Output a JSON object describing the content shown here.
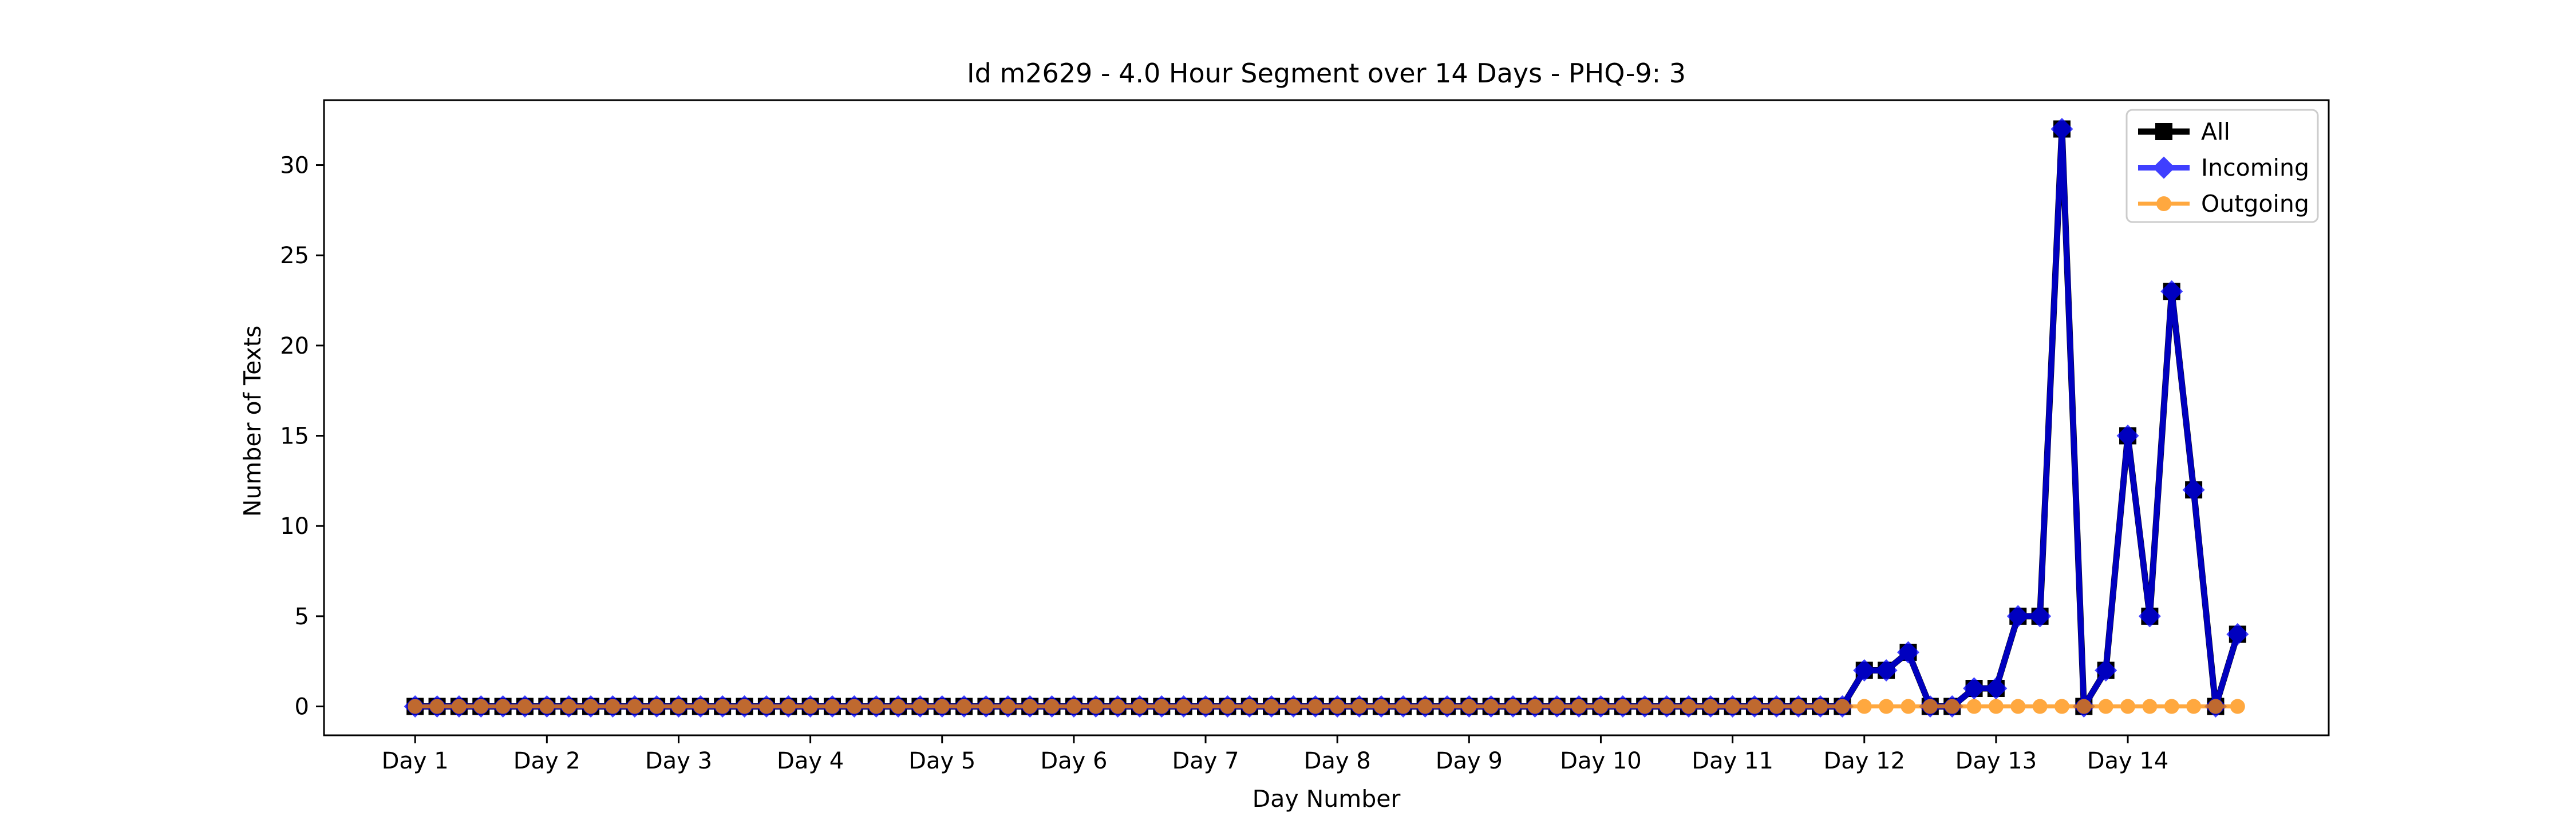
{
  "chart_data": {
    "type": "line",
    "title": "Id m2629 - 4.0 Hour Segment over 14 Days - PHQ-9: 3",
    "xlabel": "Day Number",
    "ylabel": "Number of Texts",
    "x_tick_labels": [
      "Day 1",
      "Day 2",
      "Day 3",
      "Day 4",
      "Day 5",
      "Day 6",
      "Day 7",
      "Day 8",
      "Day 9",
      "Day 10",
      "Day 11",
      "Day 12",
      "Day 13",
      "Day 14"
    ],
    "y_ticks": [
      0,
      5,
      10,
      15,
      20,
      25,
      30
    ],
    "ylim": [
      -1.6,
      33.6
    ],
    "segments_per_day": 6,
    "grid": false,
    "legend_placement": "upper right",
    "series": [
      {
        "name": "All",
        "color": "#000000",
        "marker": "square",
        "values": [
          0,
          0,
          0,
          0,
          0,
          0,
          0,
          0,
          0,
          0,
          0,
          0,
          0,
          0,
          0,
          0,
          0,
          0,
          0,
          0,
          0,
          0,
          0,
          0,
          0,
          0,
          0,
          0,
          0,
          0,
          0,
          0,
          0,
          0,
          0,
          0,
          0,
          0,
          0,
          0,
          0,
          0,
          0,
          0,
          0,
          0,
          0,
          0,
          0,
          0,
          0,
          0,
          0,
          0,
          0,
          0,
          0,
          0,
          0,
          0,
          0,
          0,
          0,
          0,
          0,
          0,
          2,
          2,
          3,
          0,
          0,
          1,
          1,
          5,
          5,
          32,
          0,
          2,
          15,
          5,
          23,
          12,
          0,
          4
        ]
      },
      {
        "name": "Incoming",
        "color": "#0000ff",
        "marker": "diamond",
        "values": [
          0,
          0,
          0,
          0,
          0,
          0,
          0,
          0,
          0,
          0,
          0,
          0,
          0,
          0,
          0,
          0,
          0,
          0,
          0,
          0,
          0,
          0,
          0,
          0,
          0,
          0,
          0,
          0,
          0,
          0,
          0,
          0,
          0,
          0,
          0,
          0,
          0,
          0,
          0,
          0,
          0,
          0,
          0,
          0,
          0,
          0,
          0,
          0,
          0,
          0,
          0,
          0,
          0,
          0,
          0,
          0,
          0,
          0,
          0,
          0,
          0,
          0,
          0,
          0,
          0,
          0,
          2,
          2,
          3,
          0,
          0,
          1,
          1,
          5,
          5,
          32,
          0,
          2,
          15,
          5,
          23,
          12,
          0,
          4
        ]
      },
      {
        "name": "Outgoing",
        "color": "#ff8c00",
        "marker": "circle",
        "values": [
          0,
          0,
          0,
          0,
          0,
          0,
          0,
          0,
          0,
          0,
          0,
          0,
          0,
          0,
          0,
          0,
          0,
          0,
          0,
          0,
          0,
          0,
          0,
          0,
          0,
          0,
          0,
          0,
          0,
          0,
          0,
          0,
          0,
          0,
          0,
          0,
          0,
          0,
          0,
          0,
          0,
          0,
          0,
          0,
          0,
          0,
          0,
          0,
          0,
          0,
          0,
          0,
          0,
          0,
          0,
          0,
          0,
          0,
          0,
          0,
          0,
          0,
          0,
          0,
          0,
          0,
          0,
          0,
          0,
          0,
          0,
          0,
          0,
          0,
          0,
          0,
          0,
          0,
          0,
          0,
          0,
          0,
          0,
          0
        ]
      }
    ]
  }
}
